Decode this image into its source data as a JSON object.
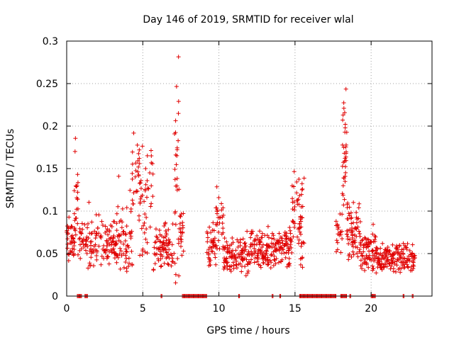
{
  "chart_data": {
    "type": "scatter",
    "title": "Day 146 of 2019, SRMTID for receiver wlal",
    "xlabel": "GPS time / hours",
    "ylabel": "SRMTID / TECUs",
    "xlim": [
      0,
      24
    ],
    "ylim": [
      0,
      0.3
    ],
    "x_ticks": [
      0,
      5,
      10,
      15,
      20
    ],
    "x_tick_labels": [
      "0",
      "5",
      "10",
      "15",
      "20"
    ],
    "y_ticks": [
      0,
      0.05,
      0.1,
      0.15,
      0.2,
      0.25,
      0.3
    ],
    "y_tick_labels": [
      "0",
      "0.05",
      "0.1",
      "0.15",
      "0.2",
      "0.25",
      "0.3"
    ],
    "grid": true,
    "marker": "+",
    "series": [
      {
        "name": "SRMTID",
        "color": "#e00000",
        "clusters": [
          {
            "start": 0.0,
            "end": 0.55,
            "base": 0.062,
            "spread": 0.016,
            "n": 40
          },
          {
            "start": 0.5,
            "end": 0.75,
            "base": 0.105,
            "spread": 0.045,
            "n": 22
          },
          {
            "start": 0.8,
            "end": 1.4,
            "base": 0.065,
            "spread": 0.014,
            "n": 30
          },
          {
            "start": 1.4,
            "end": 3.3,
            "base": 0.06,
            "spread": 0.02,
            "n": 110
          },
          {
            "start": 3.3,
            "end": 4.3,
            "base": 0.065,
            "spread": 0.03,
            "n": 60
          },
          {
            "start": 4.3,
            "end": 4.8,
            "base": 0.14,
            "spread": 0.045,
            "n": 28
          },
          {
            "start": 4.8,
            "end": 5.7,
            "base": 0.11,
            "spread": 0.05,
            "n": 45
          },
          {
            "start": 5.7,
            "end": 6.3,
            "base": 0.055,
            "spread": 0.018,
            "n": 35
          },
          {
            "start": 6.3,
            "end": 7.0,
            "base": 0.06,
            "spread": 0.02,
            "n": 45
          },
          {
            "start": 7.05,
            "end": 7.4,
            "base": 0.13,
            "spread": 0.09,
            "n": 32
          },
          {
            "start": 7.4,
            "end": 7.7,
            "base": 0.07,
            "spread": 0.02,
            "n": 20
          },
          {
            "start": 9.2,
            "end": 9.8,
            "base": 0.058,
            "spread": 0.015,
            "n": 40
          },
          {
            "start": 9.8,
            "end": 10.3,
            "base": 0.08,
            "spread": 0.02,
            "n": 30
          },
          {
            "start": 10.3,
            "end": 12.0,
            "base": 0.045,
            "spread": 0.015,
            "n": 110
          },
          {
            "start": 12.0,
            "end": 14.3,
            "base": 0.055,
            "spread": 0.015,
            "n": 150
          },
          {
            "start": 14.3,
            "end": 14.8,
            "base": 0.06,
            "spread": 0.02,
            "n": 40
          },
          {
            "start": 14.8,
            "end": 15.0,
            "base": 0.1,
            "spread": 0.03,
            "n": 15
          },
          {
            "start": 15.1,
            "end": 15.6,
            "base": 0.08,
            "spread": 0.04,
            "n": 45
          },
          {
            "start": 17.7,
            "end": 18.1,
            "base": 0.07,
            "spread": 0.02,
            "n": 20
          },
          {
            "start": 18.1,
            "end": 18.4,
            "base": 0.16,
            "spread": 0.05,
            "n": 35
          },
          {
            "start": 18.4,
            "end": 19.3,
            "base": 0.075,
            "spread": 0.025,
            "n": 70
          },
          {
            "start": 19.3,
            "end": 20.4,
            "base": 0.05,
            "spread": 0.015,
            "n": 80
          },
          {
            "start": 20.4,
            "end": 22.9,
            "base": 0.045,
            "spread": 0.012,
            "n": 160
          }
        ],
        "zero_ranges": [
          [
            0.7,
            1.0
          ],
          [
            1.2,
            1.4
          ],
          [
            6.2,
            6.3
          ],
          [
            7.6,
            9.2
          ],
          [
            11.3,
            11.4
          ],
          [
            13.5,
            13.6
          ],
          [
            14.0,
            14.1
          ],
          [
            15.3,
            15.6
          ],
          [
            15.6,
            17.7
          ],
          [
            18.0,
            18.4
          ],
          [
            18.6,
            18.7
          ],
          [
            20.0,
            20.3
          ],
          [
            22.1,
            22.2
          ],
          [
            22.7,
            22.8
          ]
        ]
      }
    ]
  }
}
